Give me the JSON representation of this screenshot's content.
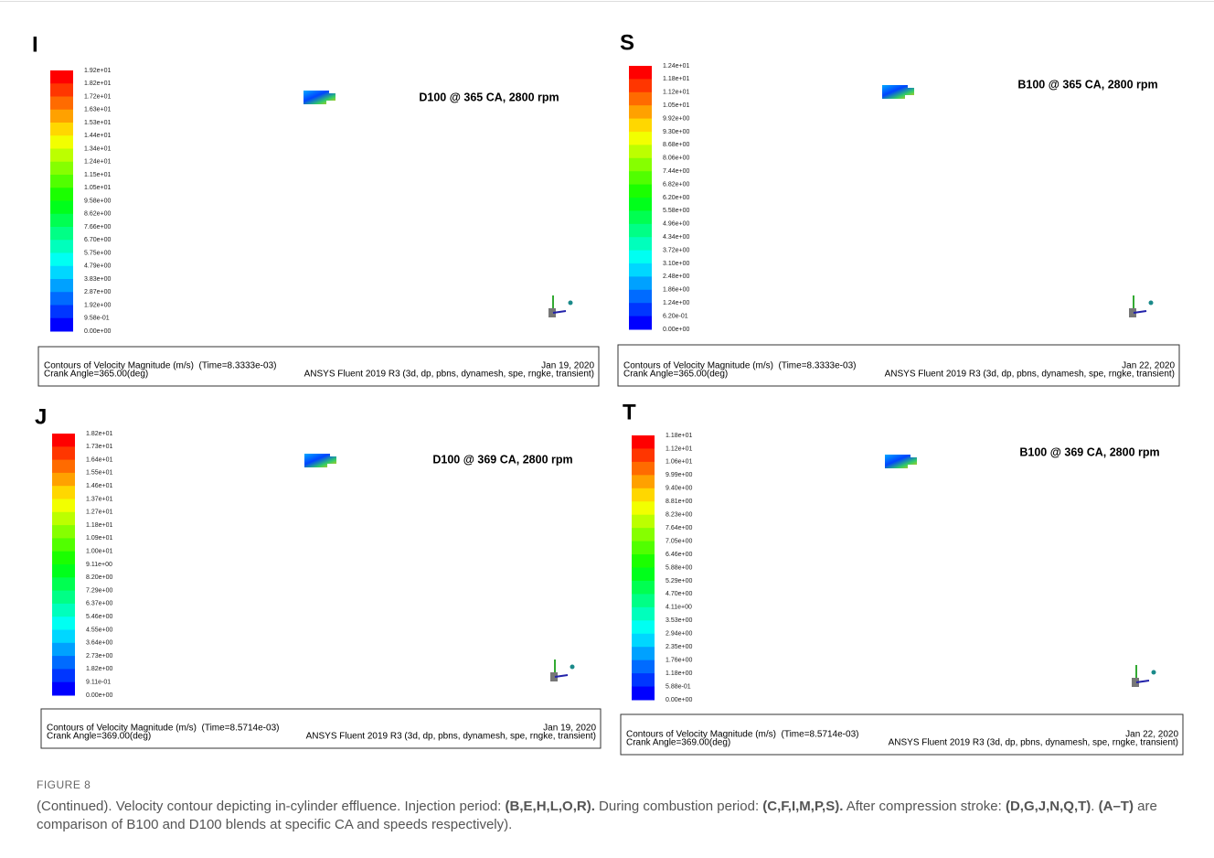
{
  "panels": [
    {
      "letter": "I",
      "title": "D100 @ 365 CA, 2800 rpm",
      "colorbar_labels": [
        "1.92e+01",
        "1.82e+01",
        "1.72e+01",
        "1.63e+01",
        "1.53e+01",
        "1.44e+01",
        "1.34e+01",
        "1.24e+01",
        "1.15e+01",
        "1.05e+01",
        "9.58e+00",
        "8.62e+00",
        "7.66e+00",
        "6.70e+00",
        "5.75e+00",
        "4.79e+00",
        "3.83e+00",
        "2.87e+00",
        "1.92e+00",
        "9.58e-01",
        "0.00e+00"
      ],
      "footer": {
        "line1": "Contours of Velocity Magnitude (m/s)  (Time=8.3333e-03)",
        "date": "Jan 19, 2020",
        "line2": "Crank Angle=365.00(deg)",
        "software": "ANSYS Fluent 2019 R3 (3d, dp, pbns, dynamesh, spe, rngke, transient)"
      }
    },
    {
      "letter": "S",
      "title": "B100 @ 365 CA, 2800 rpm",
      "colorbar_labels": [
        "1.24e+01",
        "1.18e+01",
        "1.12e+01",
        "1.05e+01",
        "9.92e+00",
        "9.30e+00",
        "8.68e+00",
        "8.06e+00",
        "7.44e+00",
        "6.82e+00",
        "6.20e+00",
        "5.58e+00",
        "4.96e+00",
        "4.34e+00",
        "3.72e+00",
        "3.10e+00",
        "2.48e+00",
        "1.86e+00",
        "1.24e+00",
        "6.20e-01",
        "0.00e+00"
      ],
      "footer": {
        "line1": "Contours of Velocity Magnitude (m/s)  (Time=8.3333e-03)",
        "date": "Jan 22, 2020",
        "line2": "Crank Angle=365.00(deg)",
        "software": "ANSYS Fluent 2019 R3 (3d, dp, pbns, dynamesh, spe, rngke, transient)"
      }
    },
    {
      "letter": "J",
      "title": "D100 @ 369 CA, 2800 rpm",
      "colorbar_labels": [
        "1.82e+01",
        "1.73e+01",
        "1.64e+01",
        "1.55e+01",
        "1.46e+01",
        "1.37e+01",
        "1.27e+01",
        "1.18e+01",
        "1.09e+01",
        "1.00e+01",
        "9.11e+00",
        "8.20e+00",
        "7.29e+00",
        "6.37e+00",
        "5.46e+00",
        "4.55e+00",
        "3.64e+00",
        "2.73e+00",
        "1.82e+00",
        "9.11e-01",
        "0.00e+00"
      ],
      "footer": {
        "line1": "Contours of Velocity Magnitude (m/s)  (Time=8.5714e-03)",
        "date": "Jan 19, 2020",
        "line2": "Crank Angle=369.00(deg)",
        "software": "ANSYS Fluent 2019 R3 (3d, dp, pbns, dynamesh, spe, rngke, transient)"
      }
    },
    {
      "letter": "T",
      "title": "B100 @ 369 CA, 2800 rpm",
      "colorbar_labels": [
        "1.18e+01",
        "1.12e+01",
        "1.06e+01",
        "9.99e+00",
        "9.40e+00",
        "8.81e+00",
        "8.23e+00",
        "7.64e+00",
        "7.05e+00",
        "6.46e+00",
        "5.88e+00",
        "5.29e+00",
        "4.70e+00",
        "4.11e+00",
        "3.53e+00",
        "2.94e+00",
        "2.35e+00",
        "1.76e+00",
        "1.18e+00",
        "5.88e-01",
        "0.00e+00"
      ],
      "footer": {
        "line1": "Contours of Velocity Magnitude (m/s)  (Time=8.5714e-03)",
        "date": "Jan 22, 2020",
        "line2": "Crank Angle=369.00(deg)",
        "software": "ANSYS Fluent 2019 R3 (3d, dp, pbns, dynamesh, spe, rngke, transient)"
      }
    }
  ],
  "caption": {
    "label": "FIGURE 8",
    "segments": [
      {
        "text": "(Continued). Velocity contour depicting in-cylinder effluence. Injection period: ",
        "bold": false
      },
      {
        "text": "(B,E,H,L,O,R).",
        "bold": true
      },
      {
        "text": " During combustion period: ",
        "bold": false
      },
      {
        "text": "(C,F,I,M,P,S).",
        "bold": true
      },
      {
        "text": " After compression stroke: ",
        "bold": false
      },
      {
        "text": "(D,G,J,N,Q,T)",
        "bold": true
      },
      {
        "text": ". ",
        "bold": false
      },
      {
        "text": "(A–T)",
        "bold": true
      },
      {
        "text": " are comparison of B100 and D100 blends at specific CA and speeds respectively).",
        "bold": false
      }
    ]
  }
}
